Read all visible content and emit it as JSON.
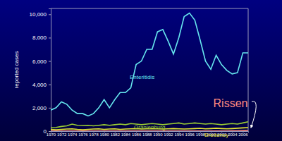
{
  "chart_data": {
    "type": "line",
    "y_label": "reported cases",
    "categories": [
      1970,
      null,
      1972,
      null,
      1974,
      null,
      1976,
      null,
      1978,
      null,
      1980,
      null,
      1982,
      null,
      1984,
      null,
      1986,
      null,
      1988,
      null,
      1990,
      null,
      1992,
      null,
      1994,
      null,
      1996,
      null,
      1998,
      null,
      2000,
      null,
      2002,
      null,
      2004,
      null,
      2006,
      null
    ],
    "series": [
      {
        "name": "Enteritidis",
        "color": "#66e6ee",
        "values": [
          1800,
          2000,
          2500,
          2300,
          1800,
          1500,
          1500,
          1300,
          1500,
          2000,
          2700,
          2000,
          2700,
          3300,
          3300,
          3700,
          5700,
          6000,
          7000,
          7000,
          8500,
          8700,
          7700,
          6600,
          8000,
          9800,
          10100,
          9500,
          7800,
          6000,
          5300,
          6500,
          5700,
          5200,
          4900,
          5000,
          6700,
          6700
        ]
      },
      {
        "name": "Oranienburg",
        "color": "#99cc33",
        "values": [
          300,
          320,
          400,
          450,
          600,
          500,
          480,
          500,
          450,
          500,
          550,
          500,
          550,
          600,
          550,
          650,
          600,
          550,
          600,
          650,
          600,
          550,
          600,
          650,
          700,
          600,
          650,
          700,
          650,
          600,
          650,
          600,
          550,
          600,
          650,
          600,
          700,
          800
        ]
      },
      {
        "name": "Bredeney",
        "color": "#e6e633",
        "values": [
          150,
          120,
          150,
          180,
          200,
          150,
          120,
          150,
          180,
          200,
          150,
          180,
          200,
          150,
          180,
          200,
          220,
          180,
          200,
          220,
          200,
          180,
          200,
          220,
          200,
          180,
          200,
          220,
          240,
          200,
          220,
          250,
          220,
          200,
          220,
          250,
          280,
          300
        ]
      },
      {
        "name": "Rissen",
        "color": "#ff8a80",
        "values": [
          10,
          10,
          10,
          10,
          10,
          10,
          10,
          10,
          10,
          10,
          10,
          10,
          10,
          10,
          10,
          10,
          10,
          10,
          10,
          10,
          10,
          10,
          10,
          10,
          10,
          10,
          10,
          10,
          10,
          10,
          10,
          10,
          10,
          10,
          20,
          30,
          40,
          60
        ]
      }
    ],
    "ylim": [
      0,
      10500
    ],
    "yticks": [
      0,
      {
        "value": 2000,
        "label": "2,000"
      },
      {
        "value": 4000,
        "label": "4,000"
      },
      {
        "value": 6000,
        "label": "6,000"
      },
      {
        "value": 8000,
        "label": "8,000"
      },
      {
        "value": 10000,
        "label": "10,000"
      }
    ],
    "grid": false
  }
}
